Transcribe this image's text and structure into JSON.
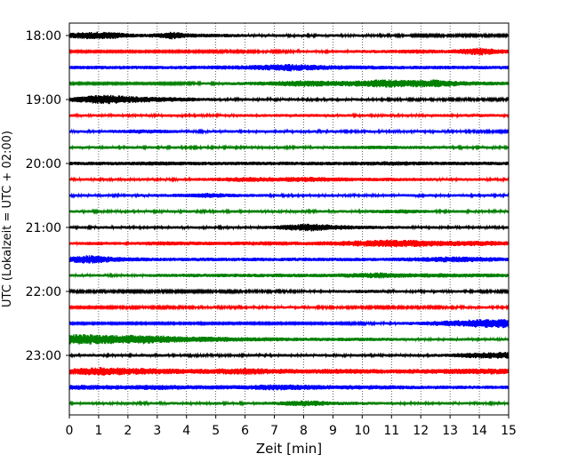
{
  "chart_data": {
    "type": "line",
    "title": "",
    "xlabel": "Zeit  [min]",
    "ylabel": "UTC (Lokalzeit = UTC + 02:00)",
    "xlim": [
      0,
      15
    ],
    "x_ticks": [
      "0",
      "1",
      "2",
      "3",
      "4",
      "5",
      "6",
      "7",
      "8",
      "9",
      "10",
      "11",
      "12",
      "13",
      "14",
      "15"
    ],
    "y_ticks": [
      "18:00",
      "19:00",
      "20:00",
      "21:00",
      "22:00",
      "23:00"
    ],
    "x_grid": "dotted vertical lines at each minute",
    "trace_interval_minutes": 15,
    "color_cycle": [
      "#000000",
      "#ff0000",
      "#0000ff",
      "#008000"
    ],
    "traces": [
      {
        "start": "18:00",
        "color": "#000000",
        "envelope": [
          [
            0,
            6
          ],
          [
            0.5,
            8
          ],
          [
            1,
            9
          ],
          [
            1.5,
            8
          ],
          [
            2,
            5
          ],
          [
            2.5,
            4
          ],
          [
            3,
            5
          ],
          [
            3.5,
            9
          ],
          [
            4,
            5
          ],
          [
            5,
            4
          ],
          [
            7,
            3
          ],
          [
            9,
            3
          ],
          [
            12,
            2.5
          ],
          [
            15,
            2.5
          ]
        ]
      },
      {
        "start": "18:15",
        "color": "#ff0000",
        "envelope": [
          [
            0,
            2
          ],
          [
            3,
            2
          ],
          [
            6,
            2.5
          ],
          [
            9,
            3
          ],
          [
            11,
            4
          ],
          [
            12,
            5
          ],
          [
            13,
            4
          ],
          [
            14,
            9
          ],
          [
            14.5,
            7
          ],
          [
            15,
            4
          ]
        ]
      },
      {
        "start": "18:30",
        "color": "#0000ff",
        "envelope": [
          [
            0,
            4
          ],
          [
            2,
            4
          ],
          [
            4,
            4
          ],
          [
            6,
            5
          ],
          [
            7,
            7
          ],
          [
            7.5,
            9
          ],
          [
            8,
            7
          ],
          [
            9,
            5
          ],
          [
            11,
            4
          ],
          [
            13,
            4
          ],
          [
            15,
            4
          ]
        ]
      },
      {
        "start": "18:45",
        "color": "#008000",
        "envelope": [
          [
            0,
            2
          ],
          [
            3,
            2
          ],
          [
            5,
            3
          ],
          [
            7,
            5
          ],
          [
            8,
            8
          ],
          [
            9,
            6
          ],
          [
            10,
            7
          ],
          [
            10.7,
            10
          ],
          [
            11.5,
            8
          ],
          [
            12.5,
            9
          ],
          [
            13.5,
            5
          ],
          [
            15,
            4
          ]
        ]
      },
      {
        "start": "19:00",
        "color": "#000000",
        "envelope": [
          [
            0,
            5
          ],
          [
            0.7,
            9
          ],
          [
            1.3,
            11
          ],
          [
            2,
            8
          ],
          [
            3,
            6
          ],
          [
            4,
            5
          ],
          [
            5,
            3
          ],
          [
            7,
            3
          ],
          [
            10,
            3
          ],
          [
            15,
            2.5
          ]
        ]
      },
      {
        "start": "19:15",
        "color": "#ff0000",
        "envelope": [
          [
            0,
            3
          ],
          [
            2,
            3
          ],
          [
            4,
            3
          ],
          [
            6,
            3
          ],
          [
            8,
            3.5
          ],
          [
            10,
            3
          ],
          [
            12,
            3
          ],
          [
            14,
            3.5
          ],
          [
            15,
            3
          ]
        ]
      },
      {
        "start": "19:30",
        "color": "#0000ff",
        "envelope": [
          [
            0,
            3
          ],
          [
            1,
            3
          ],
          [
            2.5,
            5
          ],
          [
            4,
            3
          ],
          [
            6,
            3
          ],
          [
            8,
            3
          ],
          [
            10,
            3
          ],
          [
            12,
            3
          ],
          [
            15,
            2.5
          ]
        ]
      },
      {
        "start": "19:45",
        "color": "#008000",
        "envelope": [
          [
            0,
            3
          ],
          [
            2,
            3
          ],
          [
            4,
            3
          ],
          [
            6,
            3
          ],
          [
            8,
            3
          ],
          [
            10,
            4
          ],
          [
            11,
            4
          ],
          [
            13,
            3
          ],
          [
            15,
            3
          ]
        ]
      },
      {
        "start": "20:00",
        "color": "#000000",
        "envelope": [
          [
            0,
            4
          ],
          [
            2,
            4
          ],
          [
            3,
            5
          ],
          [
            4,
            4
          ],
          [
            6,
            4
          ],
          [
            8,
            4
          ],
          [
            9,
            4
          ],
          [
            11,
            5
          ],
          [
            13,
            4
          ],
          [
            15,
            4
          ]
        ]
      },
      {
        "start": "20:15",
        "color": "#ff0000",
        "envelope": [
          [
            0,
            3
          ],
          [
            2,
            3
          ],
          [
            4,
            3
          ],
          [
            5,
            4
          ],
          [
            6,
            6
          ],
          [
            7,
            5
          ],
          [
            8,
            6
          ],
          [
            9,
            5
          ],
          [
            10,
            4
          ],
          [
            11,
            4
          ],
          [
            13,
            3
          ],
          [
            15,
            3
          ]
        ]
      },
      {
        "start": "20:30",
        "color": "#0000ff",
        "envelope": [
          [
            0,
            3
          ],
          [
            2,
            3
          ],
          [
            4,
            4
          ],
          [
            4.8,
            6
          ],
          [
            5.5,
            4
          ],
          [
            7,
            3
          ],
          [
            9,
            3
          ],
          [
            11,
            3
          ],
          [
            13,
            3
          ],
          [
            15,
            3
          ]
        ]
      },
      {
        "start": "20:45",
        "color": "#008000",
        "envelope": [
          [
            0,
            3
          ],
          [
            2,
            3
          ],
          [
            4,
            3
          ],
          [
            6,
            3
          ],
          [
            8,
            3
          ],
          [
            10,
            3
          ],
          [
            11.5,
            5
          ],
          [
            12.5,
            3
          ],
          [
            15,
            3
          ]
        ]
      },
      {
        "start": "21:00",
        "color": "#000000",
        "envelope": [
          [
            0,
            3
          ],
          [
            2,
            3
          ],
          [
            4,
            3
          ],
          [
            6,
            3
          ],
          [
            7,
            4
          ],
          [
            7.8,
            8
          ],
          [
            8.3,
            9
          ],
          [
            9,
            6
          ],
          [
            10,
            4
          ],
          [
            12,
            3
          ],
          [
            15,
            3
          ]
        ]
      },
      {
        "start": "21:15",
        "color": "#ff0000",
        "envelope": [
          [
            0,
            3
          ],
          [
            1,
            4
          ],
          [
            2,
            3
          ],
          [
            3,
            5
          ],
          [
            5,
            4
          ],
          [
            7,
            5
          ],
          [
            8,
            4
          ],
          [
            9,
            5
          ],
          [
            10,
            7
          ],
          [
            11,
            9
          ],
          [
            12,
            8
          ],
          [
            13,
            6
          ],
          [
            14,
            6
          ],
          [
            15,
            5
          ]
        ]
      },
      {
        "start": "21:30",
        "color": "#0000ff",
        "envelope": [
          [
            0,
            6
          ],
          [
            0.5,
            10
          ],
          [
            1,
            9
          ],
          [
            1.5,
            6
          ],
          [
            2,
            5
          ],
          [
            3,
            4
          ],
          [
            5,
            4
          ],
          [
            7,
            4
          ],
          [
            9,
            4
          ],
          [
            11,
            4
          ],
          [
            12,
            5
          ],
          [
            13,
            7
          ],
          [
            14,
            6
          ],
          [
            15,
            4
          ]
        ]
      },
      {
        "start": "21:45",
        "color": "#008000",
        "envelope": [
          [
            0,
            3
          ],
          [
            2,
            3
          ],
          [
            4,
            4
          ],
          [
            5,
            4
          ],
          [
            7,
            4
          ],
          [
            9,
            4
          ],
          [
            10.5,
            7
          ],
          [
            11.5,
            5
          ],
          [
            13,
            5
          ],
          [
            15,
            4
          ]
        ]
      },
      {
        "start": "22:00",
        "color": "#000000",
        "envelope": [
          [
            0,
            2.5
          ],
          [
            3,
            2.5
          ],
          [
            6,
            2.5
          ],
          [
            9,
            3
          ],
          [
            10,
            4
          ],
          [
            11,
            3
          ],
          [
            13,
            3
          ],
          [
            15,
            2.5
          ]
        ]
      },
      {
        "start": "22:15",
        "color": "#ff0000",
        "envelope": [
          [
            0,
            2
          ],
          [
            2,
            2.5
          ],
          [
            4,
            2.5
          ],
          [
            6,
            3
          ],
          [
            8,
            3
          ],
          [
            10,
            2.5
          ],
          [
            12,
            2.5
          ],
          [
            14,
            3
          ],
          [
            15,
            2.5
          ]
        ]
      },
      {
        "start": "22:30",
        "color": "#0000ff",
        "envelope": [
          [
            0,
            2
          ],
          [
            3,
            2
          ],
          [
            5,
            2
          ],
          [
            7,
            2
          ],
          [
            9,
            2
          ],
          [
            11,
            3
          ],
          [
            12,
            4
          ],
          [
            13,
            7
          ],
          [
            14,
            10
          ],
          [
            15,
            11
          ]
        ]
      },
      {
        "start": "22:45",
        "color": "#008000",
        "envelope": [
          [
            0,
            12
          ],
          [
            0.5,
            12
          ],
          [
            1,
            11
          ],
          [
            2,
            10
          ],
          [
            2.5,
            11
          ],
          [
            3,
            9
          ],
          [
            4,
            7
          ],
          [
            5,
            6
          ],
          [
            6,
            5
          ],
          [
            8,
            4
          ],
          [
            10,
            4
          ],
          [
            12,
            3
          ],
          [
            15,
            3
          ]
        ]
      },
      {
        "start": "23:00",
        "color": "#000000",
        "envelope": [
          [
            0,
            3
          ],
          [
            2,
            3
          ],
          [
            4,
            3
          ],
          [
            6,
            3
          ],
          [
            8,
            3
          ],
          [
            10,
            3
          ],
          [
            12,
            3
          ],
          [
            13,
            4
          ],
          [
            14,
            7
          ],
          [
            15,
            8
          ]
        ]
      },
      {
        "start": "23:15",
        "color": "#ff0000",
        "envelope": [
          [
            0,
            7
          ],
          [
            0.6,
            9
          ],
          [
            1.2,
            10
          ],
          [
            2,
            8
          ],
          [
            3,
            7
          ],
          [
            4,
            6
          ],
          [
            5,
            6
          ],
          [
            6,
            8
          ],
          [
            7,
            6
          ],
          [
            8,
            5
          ],
          [
            9,
            6
          ],
          [
            11,
            5
          ],
          [
            13,
            6
          ],
          [
            14.5,
            7
          ],
          [
            15,
            6
          ]
        ]
      },
      {
        "start": "23:30",
        "color": "#0000ff",
        "envelope": [
          [
            0,
            6
          ],
          [
            2,
            5
          ],
          [
            3,
            6
          ],
          [
            4,
            5
          ],
          [
            5,
            5
          ],
          [
            6,
            5
          ],
          [
            7,
            7
          ],
          [
            8,
            6
          ],
          [
            9,
            5
          ],
          [
            10,
            5
          ],
          [
            11,
            5
          ],
          [
            12,
            4
          ],
          [
            13,
            4
          ],
          [
            15,
            4
          ]
        ]
      },
      {
        "start": "23:45",
        "color": "#008000",
        "envelope": [
          [
            0,
            3
          ],
          [
            2,
            3
          ],
          [
            4,
            3
          ],
          [
            6,
            3
          ],
          [
            7,
            4
          ],
          [
            8,
            7
          ],
          [
            8.5,
            6
          ],
          [
            9,
            4
          ],
          [
            11,
            3
          ],
          [
            13,
            3
          ],
          [
            15,
            3
          ]
        ]
      }
    ]
  }
}
